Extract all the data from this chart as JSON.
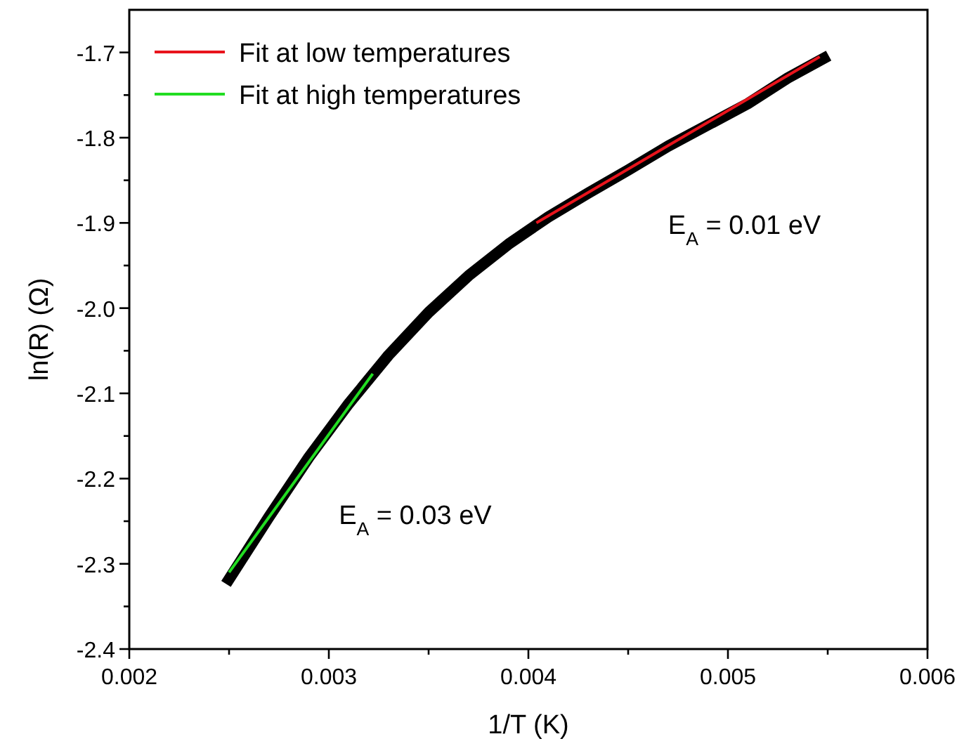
{
  "chart_data": {
    "type": "line",
    "xlabel": "1/T (K)",
    "ylabel": "ln(R) (Ω)",
    "xlim": [
      0.002,
      0.006
    ],
    "ylim": [
      -2.4,
      -1.65
    ],
    "xticks": [
      0.002,
      {
        "value": 0.0025,
        "label": null
      },
      0.003,
      {
        "value": 0.0035,
        "label": null
      },
      0.004,
      {
        "value": 0.0045,
        "label": null
      },
      0.005,
      {
        "value": 0.0055,
        "label": null
      },
      0.006
    ],
    "yticks": [
      {
        "value": -2.4,
        "label": "-2.4"
      },
      {
        "value": -2.35,
        "label": null
      },
      {
        "value": -2.3,
        "label": "-2.3"
      },
      {
        "value": -2.25,
        "label": null
      },
      {
        "value": -2.2,
        "label": "-2.2"
      },
      {
        "value": -2.15,
        "label": null
      },
      {
        "value": -2.1,
        "label": "-2.1"
      },
      {
        "value": -2.05,
        "label": null
      },
      {
        "value": -2,
        "label": "-2.0"
      },
      {
        "value": -1.95,
        "label": null
      },
      {
        "value": -1.9,
        "label": "-1.9"
      },
      {
        "value": -1.85,
        "label": null
      },
      {
        "value": -1.8,
        "label": "-1.8"
      },
      {
        "value": -1.75,
        "label": null
      },
      {
        "value": -1.7,
        "label": "-1.7"
      }
    ],
    "legend": "top left",
    "grid": false,
    "line_style": "solid",
    "marker": "none",
    "series": [
      {
        "color": "#000000",
        "x": [
          0.0025,
          0.0027,
          0.0029,
          0.0031,
          0.0033,
          0.0035,
          0.0037,
          0.0039,
          0.0041,
          0.0043,
          0.0045,
          0.0047,
          0.0049,
          0.0051,
          0.0053,
          0.00548
        ],
        "values": [
          -2.318,
          -2.245,
          -2.175,
          -2.112,
          -2.055,
          -2.005,
          -1.962,
          -1.925,
          -1.893,
          -1.865,
          -1.838,
          -1.81,
          -1.785,
          -1.76,
          -1.73,
          -1.707
        ]
      },
      {
        "name": "Fit at low temperatures",
        "color": "#e8141c",
        "x": [
          0.00404,
          0.00546
        ],
        "values": [
          -1.9,
          -1.705
        ]
      },
      {
        "name": "Fit at high temperatures",
        "color": "#22dd22",
        "x": [
          0.0025,
          0.00322
        ],
        "values": [
          -2.31,
          -2.077
        ]
      }
    ],
    "annotations": [
      "E$_{A}$ = 0.01 eV",
      "E$_{A}$ = 0.03 eV"
    ]
  }
}
